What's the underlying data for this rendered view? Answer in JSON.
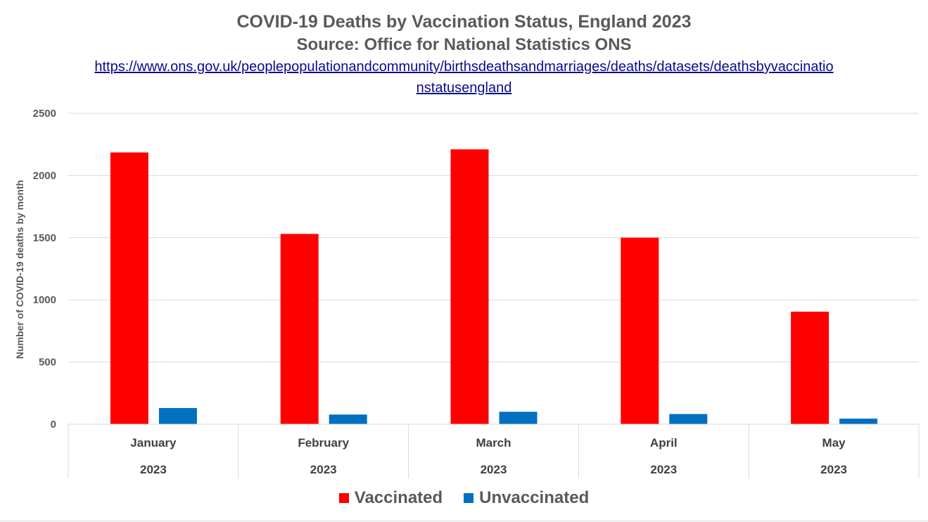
{
  "chart_data": {
    "type": "bar",
    "title": "COVID-19 Deaths by Vaccination Status, England 2023",
    "subtitle": "Source: Office for National Statistics ONS",
    "source_url": "https://www.ons.gov.uk/peoplepopulationandcommunity/birthsdeathsandmarriages/deaths/datasets/deathsbyvaccinationstatusengland",
    "ylabel": "Number of COVID-19 deaths by month",
    "xlabel": "",
    "ylim": [
      0,
      2500
    ],
    "yticks": [
      0,
      500,
      1000,
      1500,
      2000,
      2500
    ],
    "grid": true,
    "legend_position": "bottom",
    "categories": [
      "January",
      "February",
      "March",
      "April",
      "May"
    ],
    "category_groups": [
      "2023",
      "2023",
      "2023",
      "2023",
      "2023"
    ],
    "series": [
      {
        "name": "Vaccinated",
        "color": "#ff0000",
        "values": [
          2185,
          1530,
          2210,
          1500,
          905
        ]
      },
      {
        "name": "Unvaccinated",
        "color": "#0070c0",
        "values": [
          130,
          78,
          100,
          82,
          45
        ]
      }
    ]
  }
}
